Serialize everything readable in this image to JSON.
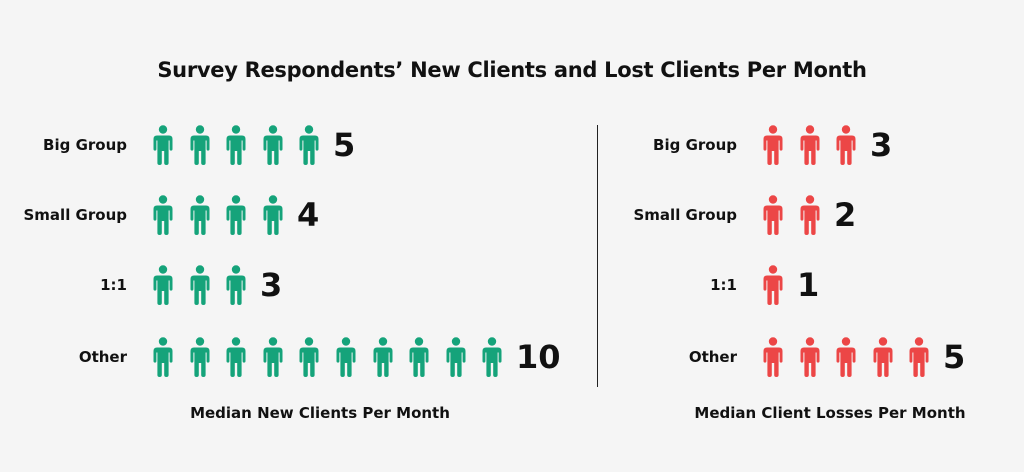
{
  "title": "Survey Respondents’ New Clients and Lost Clients Per Month",
  "colors": {
    "new_clients": "#15a37a",
    "lost_clients": "#ec4646",
    "background": "#f5f5f5"
  },
  "chart_data": [
    {
      "type": "pictograph",
      "icon": "person-icon",
      "categories": [
        "Big Group",
        "Small Group",
        "1:1",
        "Other"
      ],
      "values": [
        5,
        4,
        3,
        10
      ],
      "xlabel": "Median New Clients Per Month"
    },
    {
      "type": "pictograph",
      "icon": "person-icon",
      "categories": [
        "Big Group",
        "Small Group",
        "1:1",
        "Other"
      ],
      "values": [
        3,
        2,
        1,
        5
      ],
      "xlabel": "Median Client Losses Per Month"
    }
  ]
}
